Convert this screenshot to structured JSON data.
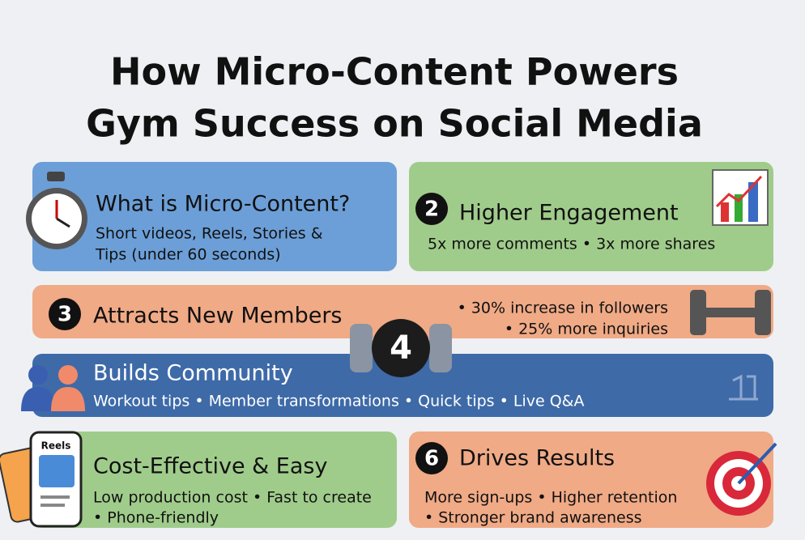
{
  "title": [
    "How Micro-Content Powers",
    "Gym Success on Social Media"
  ],
  "cards": [
    {
      "heading": "What is Micro-Content?",
      "lines": [
        "Short videos, Reels, Stories &",
        "Tips (under 60 seconds)"
      ]
    },
    {
      "number": "2",
      "heading": "Higher Engagement",
      "lines": [
        "5x more comments • 3x more shares"
      ]
    },
    {
      "number": "3",
      "heading": "Attracts New Members",
      "lines": [
        "• 30% increase in followers",
        "• 25% more inquiries"
      ]
    },
    {
      "number": "4",
      "heading": "Builds Community",
      "lines": [
        "Workout tips • Member transformations • Quick tips • Live Q&A"
      ]
    },
    {
      "heading": "Cost-Effective & Easy",
      "icon_label": "Reels",
      "lines": [
        "Low production cost • Fast to create",
        "• Phone-friendly"
      ]
    },
    {
      "number": "6",
      "heading": "Drives Results",
      "lines": [
        "More sign-ups • Higher retention",
        "• Stronger brand awareness"
      ]
    }
  ]
}
